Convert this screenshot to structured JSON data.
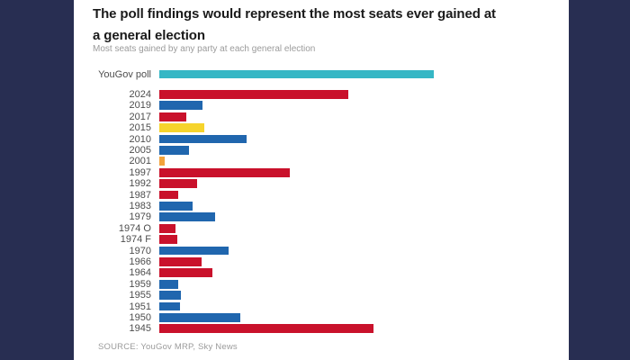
{
  "header": {
    "title_line1": "The poll findings would represent the most seats ever gained at",
    "title_line2": "a general election",
    "subtitle": "Most seats gained by any party at each general election"
  },
  "footer": {
    "source": "SOURCE: YouGov MRP, Sky News"
  },
  "palette": {
    "poll_teal": "#35b7c5",
    "red": "#c9112b",
    "blue": "#2066ae",
    "yellow": "#f6d42c",
    "orange": "#f2a33c",
    "background_navy": "#282e52",
    "panel_white": "#ffffff",
    "title_text": "#1a1a1a",
    "label_text": "#4d4d4d",
    "muted_text": "#9b9b9b"
  },
  "chart_data": {
    "type": "bar",
    "orientation": "horizontal",
    "title": "The poll findings would represent the most seats ever gained at a general election",
    "subtitle": "Most seats gained by any party at each general election",
    "source": "SOURCE: YouGov MRP, Sky News",
    "xlabel": "",
    "ylabel": "",
    "value_unit": "seats gained",
    "xlim": [
      0,
      306
    ],
    "grid": false,
    "legend": false,
    "bars": [
      {
        "label": "YouGov poll",
        "value": 306,
        "color": "#35b7c5"
      },
      {
        "label": "2024",
        "value": 211,
        "color": "#c9112b"
      },
      {
        "label": "2019",
        "value": 48,
        "color": "#2066ae"
      },
      {
        "label": "2017",
        "value": 30,
        "color": "#c9112b"
      },
      {
        "label": "2015",
        "value": 50,
        "color": "#f6d42c"
      },
      {
        "label": "2010",
        "value": 97,
        "color": "#2066ae"
      },
      {
        "label": "2005",
        "value": 33,
        "color": "#2066ae"
      },
      {
        "label": "2001",
        "value": 6,
        "color": "#f2a33c"
      },
      {
        "label": "1997",
        "value": 145,
        "color": "#c9112b"
      },
      {
        "label": "1992",
        "value": 42,
        "color": "#c9112b"
      },
      {
        "label": "1987",
        "value": 21,
        "color": "#c9112b"
      },
      {
        "label": "1983",
        "value": 37,
        "color": "#2066ae"
      },
      {
        "label": "1979",
        "value": 62,
        "color": "#2066ae"
      },
      {
        "label": "1974 O",
        "value": 18,
        "color": "#c9112b"
      },
      {
        "label": "1974 F",
        "value": 20,
        "color": "#c9112b"
      },
      {
        "label": "1970",
        "value": 77,
        "color": "#2066ae"
      },
      {
        "label": "1966",
        "value": 47,
        "color": "#c9112b"
      },
      {
        "label": "1964",
        "value": 59,
        "color": "#c9112b"
      },
      {
        "label": "1959",
        "value": 21,
        "color": "#2066ae"
      },
      {
        "label": "1955",
        "value": 24,
        "color": "#2066ae"
      },
      {
        "label": "1951",
        "value": 23,
        "color": "#2066ae"
      },
      {
        "label": "1950",
        "value": 90,
        "color": "#2066ae"
      },
      {
        "label": "1945",
        "value": 239,
        "color": "#c9112b"
      }
    ]
  }
}
